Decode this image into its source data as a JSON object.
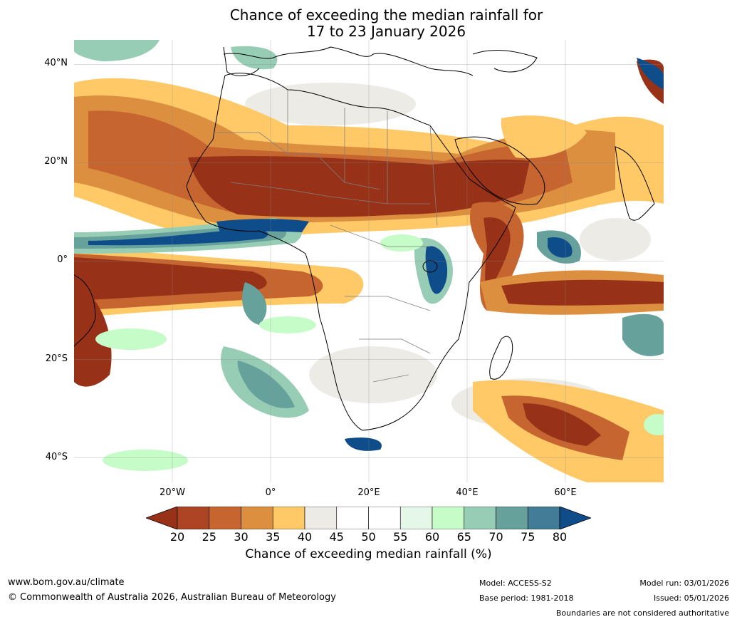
{
  "title": {
    "line1": "Chance of exceeding the median rainfall for",
    "line2": "17 to 23 January 2026"
  },
  "map": {
    "lat_labels": [
      "40°N",
      "20°N",
      "0°",
      "20°S",
      "40°S"
    ],
    "lat_values": [
      40,
      20,
      0,
      -20,
      -40
    ],
    "lon_labels": [
      "20°W",
      "0°",
      "20°E",
      "40°E",
      "60°E"
    ],
    "lon_values": [
      -20,
      0,
      20,
      40,
      60
    ],
    "extent": {
      "lon_min": -40,
      "lon_max": 80,
      "lat_min": -45,
      "lat_max": 45
    },
    "gridlines": true,
    "colors": {
      "very_dry": "#973219",
      "dry": "#c6652f",
      "mod_dry": "#dc8f3f",
      "slight_dry": "#fec966",
      "neutral": "#edebe6",
      "white": "#ffffff",
      "slight_wet": "#c5fcc8",
      "mod_wet": "#98cdb5",
      "wet": "#66a19c",
      "very_wet": "#0f4d8a"
    }
  },
  "colorbar": {
    "ticks": [
      "20",
      "25",
      "30",
      "35",
      "40",
      "45",
      "50",
      "55",
      "60",
      "65",
      "70",
      "75",
      "80"
    ],
    "colors": [
      "#973219",
      "#ad4525",
      "#c6652f",
      "#dc8f3f",
      "#fec966",
      "#edebe6",
      "#ffffff",
      "#ffffff",
      "#e5f7e9",
      "#c5fcc8",
      "#98cdb5",
      "#66a19c",
      "#427c97",
      "#0f4d8a"
    ],
    "label": "Chance of exceeding median rainfall (%)"
  },
  "footer": {
    "url": "www.bom.gov.au/climate",
    "copyright": "© Commonwealth of Australia 2026, Australian Bureau of Meteorology",
    "model": "Model: ACCESS-S2",
    "base_period": "Base period: 1981-2018",
    "model_run": "Model run: 03/01/2026",
    "issued": "Issued: 05/01/2026",
    "disclaimer": "Boundaries are not considered authoritative"
  }
}
